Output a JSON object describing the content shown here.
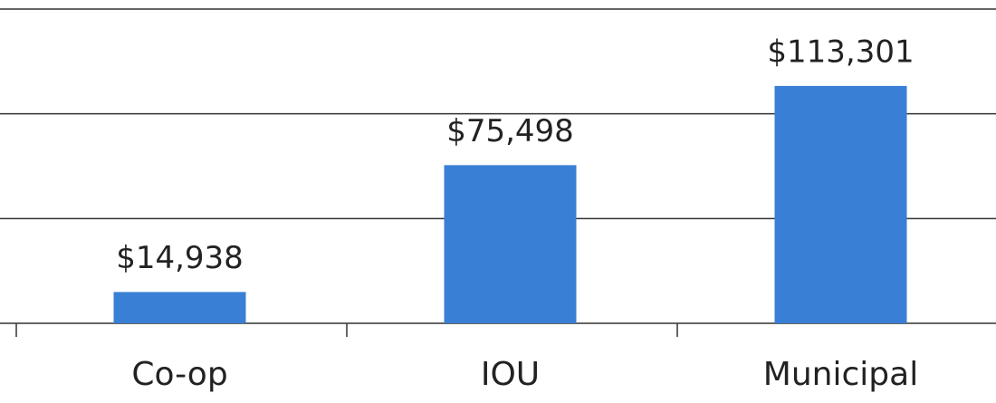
{
  "chart_data": {
    "type": "bar",
    "categories": [
      "Co-op",
      "IOU",
      "Municipal"
    ],
    "values": [
      14938,
      75498,
      113301
    ],
    "value_labels": [
      "$14,938",
      "$75,498",
      "$113,301"
    ],
    "color": "#3a7fd6",
    "ylim": [
      0,
      150000
    ],
    "yticks": [
      0,
      50000,
      100000,
      150000
    ],
    "grid": true
  }
}
